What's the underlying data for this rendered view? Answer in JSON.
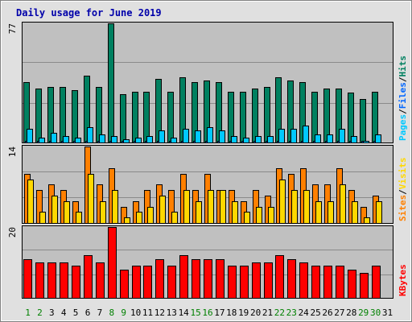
{
  "chart_data": {
    "type": "bar",
    "title": "Daily usage for June 2019",
    "colors": {
      "title": "#0000aa",
      "background": "#e0e0e0",
      "plot_bg": "#c0c0c0",
      "gridline": "#8a8a8a",
      "pages": "#00c8ff",
      "files": "#0066ff",
      "hits": "#008060",
      "sites": "#ffd800",
      "visits": "#ff8000",
      "kbytes": "#ff0000",
      "weekend_label": "#008000",
      "weekday_label": "#000000"
    },
    "days": [
      "1",
      "2",
      "3",
      "4",
      "5",
      "6",
      "7",
      "8",
      "9",
      "10",
      "11",
      "12",
      "13",
      "14",
      "15",
      "16",
      "17",
      "18",
      "19",
      "20",
      "21",
      "22",
      "23",
      "24",
      "25",
      "26",
      "27",
      "28",
      "29",
      "30",
      "31"
    ],
    "weekend_days": [
      "1",
      "2",
      "8",
      "9",
      "15",
      "16",
      "22",
      "23",
      "29",
      "30"
    ],
    "panels": [
      {
        "id": "hits_panel",
        "ytick": "77",
        "ymax": 77,
        "legend": [
          {
            "text": "Pages",
            "color": "#00c8ff"
          },
          {
            "text": "/",
            "color": "#000000"
          },
          {
            "text": "Files",
            "color": "#0066ff"
          },
          {
            "text": "/",
            "color": "#000000"
          },
          {
            "text": "Hits",
            "color": "#008060"
          }
        ],
        "series": [
          {
            "name": "Hits",
            "color": "#008060",
            "values": [
              39,
              35,
              36,
              36,
              34,
              43,
              36,
              77,
              31,
              33,
              33,
              41,
              33,
              42,
              39,
              40,
              39,
              33,
              33,
              35,
              36,
              42,
              40,
              39,
              33,
              35,
              35,
              32,
              28,
              33,
              null
            ]
          },
          {
            "name": "Files",
            "color": "#0066ff",
            "values": [
              1,
              1,
              1,
              1,
              1,
              1,
              1,
              1,
              1,
              1,
              1,
              1,
              1,
              1,
              1,
              1,
              1,
              1,
              1,
              1,
              1,
              1,
              1,
              1,
              1,
              1,
              1,
              1,
              1,
              1,
              null
            ]
          },
          {
            "name": "Pages",
            "color": "#00c8ff",
            "values": [
              9,
              3,
              6,
              4,
              3,
              10,
              5,
              4,
              2,
              3,
              4,
              8,
              3,
              9,
              8,
              10,
              8,
              4,
              3,
              4,
              4,
              9,
              9,
              11,
              5,
              5,
              9,
              4,
              1,
              5,
              null
            ]
          }
        ]
      },
      {
        "id": "visits_panel",
        "ytick": "14",
        "ymax": 14,
        "legend": [
          {
            "text": "Sites",
            "color": "#ff8000"
          },
          {
            "text": "/",
            "color": "#000000"
          },
          {
            "text": "Visits",
            "color": "#ffd800"
          }
        ],
        "series": [
          {
            "name": "Visits",
            "color": "#ff8000",
            "values": [
              9,
              6,
              7,
              6,
              4,
              14,
              7,
              10,
              3,
              4,
              6,
              7,
              6,
              9,
              6,
              9,
              6,
              6,
              4,
              6,
              5,
              10,
              9,
              10,
              7,
              7,
              10,
              6,
              3,
              5,
              null
            ]
          },
          {
            "name": "Sites",
            "color": "#ffd800",
            "values": [
              8,
              2,
              5,
              4,
              2,
              9,
              4,
              6,
              1,
              2,
              3,
              5,
              2,
              6,
              4,
              6,
              6,
              4,
              2,
              3,
              3,
              8,
              6,
              6,
              4,
              4,
              7,
              4,
              1,
              4,
              null
            ]
          }
        ]
      },
      {
        "id": "kbytes_panel",
        "ytick": "20",
        "ymax": 20,
        "legend": [
          {
            "text": "KBytes",
            "color": "#ff0000"
          }
        ],
        "series": [
          {
            "name": "KBytes",
            "color": "#ff0000",
            "values": [
              11,
              10,
              10,
              10,
              9,
              12,
              10,
              20,
              8,
              9,
              9,
              11,
              9,
              12,
              11,
              11,
              11,
              9,
              9,
              10,
              10,
              12,
              11,
              10,
              9,
              9,
              9,
              8,
              7,
              9,
              null
            ]
          }
        ]
      }
    ]
  }
}
